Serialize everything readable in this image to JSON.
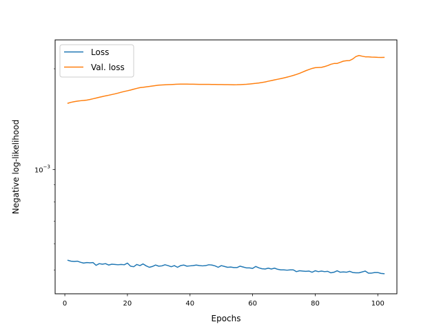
{
  "chart_data": {
    "type": "line",
    "xlabel": "Epochs",
    "ylabel": "Negative log-likelihood",
    "y_scale": "log",
    "xlim": [
      -3.1,
      106.1
    ],
    "ylim": [
      0.000425,
      0.00244
    ],
    "grid": false,
    "legend": "top-left",
    "x_ticks": [
      {
        "value": 0,
        "label": "0"
      },
      {
        "value": 20,
        "label": "20"
      },
      {
        "value": 40,
        "label": "40"
      },
      {
        "value": 60,
        "label": "60"
      },
      {
        "value": 80,
        "label": "80"
      },
      {
        "value": 100,
        "label": "100"
      }
    ],
    "y_ticks": [
      {
        "value": 0.001,
        "label_base": "10",
        "label_exp": "−3"
      }
    ],
    "series": [
      {
        "name": "Loss",
        "color": "#1f77b4",
        "x": [
          1,
          2,
          3,
          4,
          5,
          6,
          7,
          8,
          9,
          10,
          11,
          12,
          13,
          14,
          15,
          16,
          17,
          18,
          19,
          20,
          21,
          22,
          23,
          24,
          25,
          26,
          27,
          28,
          29,
          30,
          31,
          32,
          33,
          34,
          35,
          36,
          37,
          38,
          39,
          40,
          41,
          42,
          43,
          44,
          45,
          46,
          47,
          48,
          49,
          50,
          51,
          52,
          53,
          54,
          55,
          56,
          57,
          58,
          59,
          60,
          61,
          62,
          63,
          64,
          65,
          66,
          67,
          68,
          69,
          70,
          71,
          72,
          73,
          74,
          75,
          76,
          77,
          78,
          79,
          80,
          81,
          82,
          83,
          84,
          85,
          86,
          87,
          88,
          89,
          90,
          91,
          92,
          93,
          94,
          95,
          96,
          97,
          98,
          99,
          100,
          101,
          102
        ],
        "y": [
          0.000535,
          0.000532,
          0.000531,
          0.000532,
          0.000528,
          0.000525,
          0.000527,
          0.000526,
          0.000527,
          0.000517,
          0.000523,
          0.000521,
          0.000523,
          0.000518,
          0.000521,
          0.00052,
          0.000519,
          0.00052,
          0.000519,
          0.000525,
          0.000514,
          0.000512,
          0.00052,
          0.000516,
          0.000522,
          0.000515,
          0.00051,
          0.000513,
          0.000518,
          0.000514,
          0.000515,
          0.000519,
          0.000516,
          0.000512,
          0.000516,
          0.00051,
          0.000516,
          0.000518,
          0.000514,
          0.000515,
          0.000516,
          0.000518,
          0.000516,
          0.000515,
          0.000516,
          0.000519,
          0.000518,
          0.000515,
          0.00051,
          0.000516,
          0.000513,
          0.00051,
          0.000511,
          0.000509,
          0.000509,
          0.000514,
          0.000511,
          0.000508,
          0.000508,
          0.000506,
          0.000513,
          0.000508,
          0.000505,
          0.000504,
          0.000507,
          0.000504,
          0.000507,
          0.000503,
          0.000501,
          0.000501,
          0.0005,
          0.000501,
          0.000501,
          0.000495,
          0.000498,
          0.000497,
          0.000496,
          0.000497,
          0.000493,
          0.000498,
          0.000495,
          0.000497,
          0.000495,
          0.000496,
          0.000491,
          0.000493,
          0.000498,
          0.000493,
          0.000494,
          0.000493,
          0.000496,
          0.000492,
          0.000491,
          0.000491,
          0.000494,
          0.000497,
          0.00049,
          0.00049,
          0.000492,
          0.000492,
          0.000489,
          0.000488
        ]
      },
      {
        "name": "Val. loss",
        "color": "#ff7f0e",
        "x": [
          1,
          2,
          3,
          4,
          5,
          6,
          7,
          8,
          9,
          10,
          11,
          12,
          13,
          14,
          15,
          16,
          17,
          18,
          19,
          20,
          21,
          22,
          23,
          24,
          25,
          26,
          27,
          28,
          29,
          30,
          31,
          32,
          33,
          34,
          35,
          36,
          37,
          38,
          39,
          40,
          41,
          42,
          43,
          44,
          45,
          46,
          47,
          48,
          49,
          50,
          51,
          52,
          53,
          54,
          55,
          56,
          57,
          58,
          59,
          60,
          61,
          62,
          63,
          64,
          65,
          66,
          67,
          68,
          69,
          70,
          71,
          72,
          73,
          74,
          75,
          76,
          77,
          78,
          79,
          80,
          81,
          82,
          83,
          84,
          85,
          86,
          87,
          88,
          89,
          90,
          91,
          92,
          93,
          94,
          95,
          96,
          97,
          98,
          99,
          100,
          101,
          102
        ],
        "y": [
          0.001578,
          0.001588,
          0.001595,
          0.001601,
          0.001605,
          0.001608,
          0.001612,
          0.001619,
          0.001627,
          0.001635,
          0.001644,
          0.001652,
          0.00166,
          0.001667,
          0.001675,
          0.001683,
          0.001692,
          0.001702,
          0.001711,
          0.001719,
          0.001728,
          0.001738,
          0.001748,
          0.001757,
          0.001761,
          0.001766,
          0.001771,
          0.001777,
          0.001782,
          0.001787,
          0.001789,
          0.001791,
          0.001793,
          0.001795,
          0.001797,
          0.001799,
          0.0018,
          0.0018,
          0.0018,
          0.001799,
          0.001799,
          0.001798,
          0.001797,
          0.001797,
          0.001797,
          0.001797,
          0.001796,
          0.001796,
          0.001795,
          0.001795,
          0.001794,
          0.001793,
          0.001792,
          0.001791,
          0.001792,
          0.001794,
          0.001796,
          0.001798,
          0.001801,
          0.001805,
          0.001809,
          0.001814,
          0.00182,
          0.001827,
          0.001836,
          0.001844,
          0.001853,
          0.001861,
          0.001869,
          0.001878,
          0.001888,
          0.001899,
          0.001911,
          0.001924,
          0.001939,
          0.001956,
          0.001974,
          0.00199,
          0.002005,
          0.002015,
          0.002018,
          0.00202,
          0.002031,
          0.002045,
          0.002063,
          0.002074,
          0.002075,
          0.002091,
          0.002108,
          0.002114,
          0.002117,
          0.00214,
          0.002176,
          0.002192,
          0.002181,
          0.002172,
          0.002172,
          0.002168,
          0.002166,
          0.002164,
          0.002163,
          0.002164
        ]
      }
    ]
  }
}
